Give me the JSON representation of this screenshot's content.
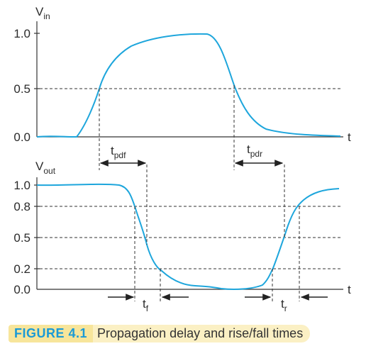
{
  "figure": {
    "top": {
      "ylabel_main": "V",
      "ylabel_sub": "in",
      "ticks": [
        "1.0",
        "0.5",
        "0.0"
      ],
      "xlabel": "t",
      "tpdf_main": "t",
      "tpdf_sub": "pdf",
      "tpdr_main": "t",
      "tpdr_sub": "pdr"
    },
    "bottom": {
      "ylabel_main": "V",
      "ylabel_sub": "out",
      "ticks": [
        "1.0",
        "0.8",
        "0.5",
        "0.2",
        "0.0"
      ],
      "xlabel": "t",
      "tf_main": "t",
      "tf_sub": "f",
      "tr_main": "t",
      "tr_sub": "r"
    },
    "colors": {
      "waveform": "#1ea6dc",
      "caption_label": "#1a9ad6",
      "caption_bg": "#fbf0c4"
    }
  },
  "caption": {
    "number": "FIGURE 4.1",
    "text": "Propagation delay and rise/fall times"
  }
}
